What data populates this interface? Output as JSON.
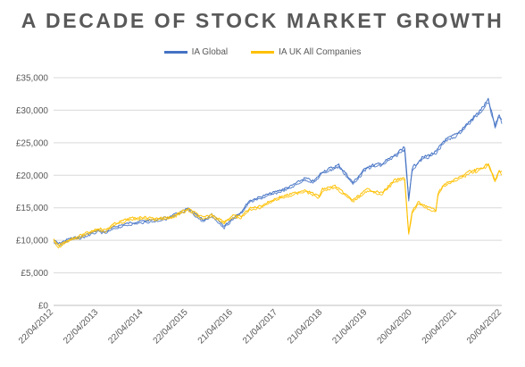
{
  "chart_data": {
    "type": "line",
    "title": "A DECADE OF STOCK MARKET GROWTH",
    "xlabel": "",
    "ylabel": "",
    "ylim": [
      0,
      35000
    ],
    "y_ticks": [
      "£0",
      "£5,000",
      "£10,000",
      "£15,000",
      "£20,000",
      "£25,000",
      "£30,000",
      "£35,000"
    ],
    "x_ticks": [
      "22/04/2012",
      "22/04/2013",
      "22/04/2014",
      "22/04/2015",
      "21/04/2016",
      "21/04/2017",
      "21/04/2018",
      "21/04/2019",
      "20/04/2020",
      "20/04/2021",
      "20/04/2022"
    ],
    "x_range": [
      "2012-04-22",
      "2022-04-20"
    ],
    "grid": "horizontal",
    "legend_position": "top",
    "series": [
      {
        "name": "IA Global",
        "color": "#4472c4",
        "points": [
          [
            "2012-04-22",
            10000
          ],
          [
            "2012-06-01",
            9400
          ],
          [
            "2012-09-01",
            10200
          ],
          [
            "2012-12-01",
            10500
          ],
          [
            "2013-04-22",
            11500
          ],
          [
            "2013-06-15",
            11200
          ],
          [
            "2013-09-01",
            12000
          ],
          [
            "2014-01-01",
            12600
          ],
          [
            "2014-04-22",
            12900
          ],
          [
            "2014-08-01",
            13100
          ],
          [
            "2014-12-01",
            13600
          ],
          [
            "2015-04-22",
            14800
          ],
          [
            "2015-08-25",
            13000
          ],
          [
            "2015-11-01",
            13900
          ],
          [
            "2016-02-11",
            12100
          ],
          [
            "2016-04-21",
            13400
          ],
          [
            "2016-06-27",
            14300
          ],
          [
            "2016-09-01",
            16000
          ],
          [
            "2016-12-01",
            16600
          ],
          [
            "2017-04-21",
            17500
          ],
          [
            "2017-08-01",
            18200
          ],
          [
            "2017-12-01",
            19500
          ],
          [
            "2018-02-09",
            19000
          ],
          [
            "2018-04-21",
            20500
          ],
          [
            "2018-09-01",
            21500
          ],
          [
            "2018-10-15",
            20500
          ],
          [
            "2018-12-24",
            18800
          ],
          [
            "2019-04-21",
            21300
          ],
          [
            "2019-08-15",
            21700
          ],
          [
            "2019-12-01",
            23000
          ],
          [
            "2020-02-19",
            24200
          ],
          [
            "2020-03-23",
            16300
          ],
          [
            "2020-04-20",
            21000
          ],
          [
            "2020-07-01",
            22500
          ],
          [
            "2020-11-01",
            23500
          ],
          [
            "2021-01-01",
            25200
          ],
          [
            "2021-04-20",
            26300
          ],
          [
            "2021-08-01",
            28200
          ],
          [
            "2021-11-01",
            30000
          ],
          [
            "2021-12-31",
            31500
          ],
          [
            "2022-01-15",
            30500
          ],
          [
            "2022-02-24",
            27500
          ],
          [
            "2022-03-30",
            29300
          ],
          [
            "2022-04-20",
            28300
          ]
        ]
      },
      {
        "name": "IA UK All Companies",
        "color": "#ffc000",
        "points": [
          [
            "2012-04-22",
            10000
          ],
          [
            "2012-06-01",
            9100
          ],
          [
            "2012-09-01",
            10100
          ],
          [
            "2012-12-01",
            10700
          ],
          [
            "2013-04-22",
            11800
          ],
          [
            "2013-06-15",
            11500
          ],
          [
            "2013-09-01",
            12500
          ],
          [
            "2014-01-01",
            13300
          ],
          [
            "2014-04-22",
            13500
          ],
          [
            "2014-08-01",
            13300
          ],
          [
            "2014-12-01",
            13500
          ],
          [
            "2015-04-22",
            14800
          ],
          [
            "2015-08-25",
            13400
          ],
          [
            "2015-11-01",
            13900
          ],
          [
            "2016-02-11",
            12800
          ],
          [
            "2016-04-21",
            13700
          ],
          [
            "2016-06-27",
            13600
          ],
          [
            "2016-09-01",
            14800
          ],
          [
            "2016-12-01",
            15200
          ],
          [
            "2017-04-21",
            16500
          ],
          [
            "2017-08-01",
            17000
          ],
          [
            "2017-12-01",
            17700
          ],
          [
            "2018-03-23",
            16700
          ],
          [
            "2018-04-21",
            17800
          ],
          [
            "2018-08-01",
            18300
          ],
          [
            "2018-12-24",
            16100
          ],
          [
            "2019-04-21",
            17800
          ],
          [
            "2019-08-15",
            17200
          ],
          [
            "2019-12-01",
            19200
          ],
          [
            "2020-02-19",
            19500
          ],
          [
            "2020-03-23",
            11000
          ],
          [
            "2020-04-20",
            14300
          ],
          [
            "2020-06-08",
            15800
          ],
          [
            "2020-10-30",
            14500
          ],
          [
            "2020-11-15",
            17000
          ],
          [
            "2021-01-01",
            18500
          ],
          [
            "2021-04-20",
            19400
          ],
          [
            "2021-08-01",
            20500
          ],
          [
            "2021-11-01",
            21000
          ],
          [
            "2021-12-31",
            21700
          ],
          [
            "2022-02-24",
            19100
          ],
          [
            "2022-03-30",
            20700
          ],
          [
            "2022-04-20",
            20400
          ]
        ]
      }
    ]
  }
}
